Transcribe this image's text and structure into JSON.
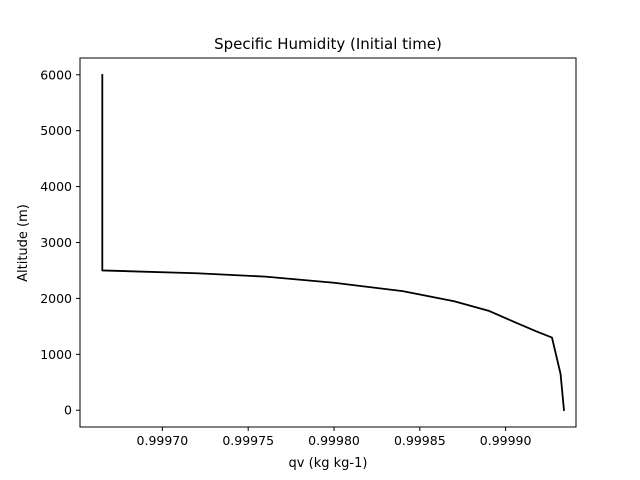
{
  "chart_data": {
    "type": "line",
    "title": "Specific Humidity (Initial time)",
    "xlabel": "qv (kg kg-1)",
    "ylabel": "Altitude (m)",
    "xlim": [
      0.999652,
      0.999941
    ],
    "ylim": [
      -300,
      6300
    ],
    "xticks": [
      0.9997,
      0.99975,
      0.9998,
      0.99985,
      0.9999
    ],
    "xtick_labels": [
      "0.99970",
      "0.99975",
      "0.99980",
      "0.99985",
      "0.99990"
    ],
    "yticks": [
      0,
      1000,
      2000,
      3000,
      4000,
      5000,
      6000
    ],
    "ytick_labels": [
      "0",
      "1000",
      "2000",
      "3000",
      "4000",
      "5000",
      "6000"
    ],
    "grid": false,
    "line_color": "#000000",
    "series": [
      {
        "x": [
          0.999665,
          0.999665,
          0.99972,
          0.99976,
          0.9998,
          0.99984,
          0.99987,
          0.99989,
          0.999905,
          0.999918,
          0.999927,
          0.999932,
          0.999934
        ],
        "y": [
          6000,
          2500,
          2450,
          2390,
          2280,
          2130,
          1950,
          1780,
          1580,
          1410,
          1300,
          650,
          0
        ]
      }
    ]
  }
}
